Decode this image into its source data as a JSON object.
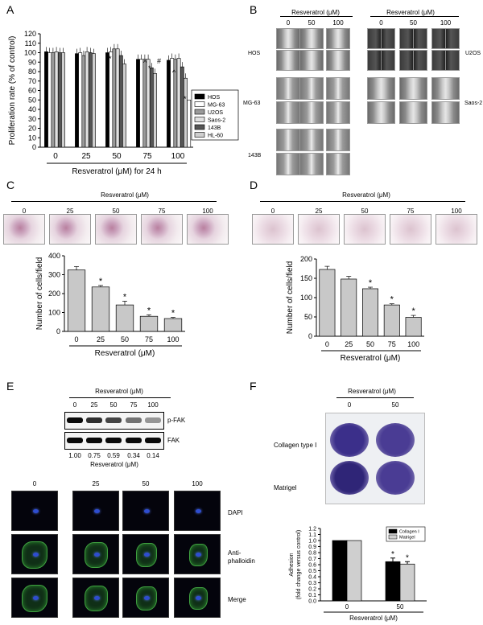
{
  "panels": {
    "A": {
      "letter": "A",
      "chart_data": {
        "type": "bar",
        "categories": [
          "0",
          "25",
          "50",
          "75",
          "100"
        ],
        "series": [
          {
            "name": "HOS",
            "values": [
              101,
              99,
              100,
              93,
              92
            ]
          },
          {
            "name": "MG-63",
            "values": [
              100,
              100,
              101,
              93,
              94
            ]
          },
          {
            "name": "U2OS",
            "values": [
              100,
              97,
              104,
              93,
              93
            ]
          },
          {
            "name": "Saos-2",
            "values": [
              101,
              101,
              104,
              93,
              94
            ]
          },
          {
            "name": "143B",
            "values": [
              100,
              100,
              97,
              84,
              85
            ]
          },
          {
            "name": "HL-60",
            "values": [
              100,
              99,
              88,
              78,
              73
            ]
          }
        ],
        "ylabel": "Proliferation rate (% of control)",
        "xlabel": "Resveratrol (μM) for 24 h",
        "ylim": [
          0,
          120
        ],
        "yticks": [
          0,
          10,
          20,
          30,
          40,
          50,
          60,
          70,
          80,
          90,
          100,
          110,
          120
        ],
        "extra_last_bar": 50,
        "sig": [
          "*",
          "^",
          "*",
          "#",
          "*",
          "^",
          "*"
        ]
      }
    },
    "B": {
      "letter": "B",
      "header": "Resveratrol (μM)",
      "cols": [
        "0",
        "50",
        "100"
      ],
      "lines": [
        "HOS",
        "U2OS",
        "MG-63",
        "Saos-2",
        "143B"
      ]
    },
    "C": {
      "letter": "C",
      "header": "Resveratrol (μM)",
      "cols": [
        "0",
        "25",
        "50",
        "75",
        "100"
      ],
      "chart_data": {
        "type": "bar",
        "categories": [
          "0",
          "25",
          "50",
          "75",
          "100"
        ],
        "values": [
          325,
          235,
          140,
          80,
          68
        ],
        "errors": [
          18,
          8,
          20,
          8,
          6
        ],
        "ylabel": "Number of cells/field",
        "xlabel": "Resveratrol (μM)",
        "ylim": [
          0,
          400
        ],
        "yticks": [
          0,
          100,
          200,
          300,
          400
        ],
        "sig": [
          "",
          "*",
          "*",
          "*",
          "*"
        ]
      }
    },
    "D": {
      "letter": "D",
      "header": "Resveratrol (μM)",
      "cols": [
        "0",
        "25",
        "50",
        "75",
        "100"
      ],
      "chart_data": {
        "type": "bar",
        "categories": [
          "0",
          "25",
          "50",
          "75",
          "100"
        ],
        "values": [
          173,
          148,
          123,
          81,
          49
        ],
        "errors": [
          8,
          7,
          4,
          3,
          5
        ],
        "ylabel": "Number of cells/field",
        "xlabel": "Resveratrol (μM)",
        "ylim": [
          0,
          200
        ],
        "yticks": [
          0,
          50,
          100,
          150,
          200
        ],
        "sig": [
          "",
          "",
          "*",
          "*",
          "*"
        ]
      }
    },
    "E": {
      "letter": "E",
      "header": "Resveratrol (μM)",
      "blot_cols": [
        "0",
        "25",
        "50",
        "75",
        "100"
      ],
      "blot_labels": [
        "p-FAK",
        "FAK"
      ],
      "ratios": [
        "1.00",
        "0.75",
        "0.59",
        "0.34",
        "0.14"
      ],
      "ratio_caption": "Resveratrol (μM)",
      "img_cols": [
        "0",
        "25",
        "50",
        "100"
      ],
      "row_labels": [
        "DAPI",
        "Anti-\nphalloidin",
        "Merge"
      ]
    },
    "F": {
      "letter": "F",
      "header": "Resveratrol (μM)",
      "cols": [
        "0",
        "50"
      ],
      "row_labels": [
        "Collagen type I",
        "Matrigel"
      ],
      "chart_data": {
        "type": "bar",
        "categories": [
          "0",
          "50"
        ],
        "series": [
          {
            "name": "Collagen I",
            "values": [
              1.0,
              0.65
            ],
            "errors": [
              0,
              0.06
            ]
          },
          {
            "name": "Matrigel",
            "values": [
              1.0,
              0.61
            ],
            "errors": [
              0,
              0.04
            ]
          }
        ],
        "ylabel": "Adhesion\n(fold change versus control)",
        "xlabel": "Resveratrol (μM)",
        "ylim": [
          0,
          1.2
        ],
        "yticks": [
          "0.0",
          "0.1",
          "0.2",
          "0.3",
          "0.4",
          "0.5",
          "0.6",
          "0.7",
          "0.8",
          "0.9",
          "1.0",
          "1.1",
          "1.2"
        ],
        "sig": [
          "",
          "*"
        ]
      }
    }
  }
}
